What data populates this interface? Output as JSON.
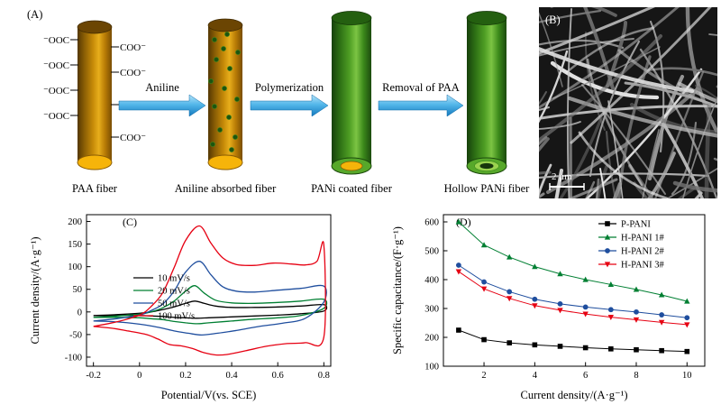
{
  "panel_a": {
    "label": "(A)",
    "arrow_labels": [
      "Aniline",
      "Polymerization",
      "Removal of PAA"
    ],
    "fiber_labels": [
      "PAA fiber",
      "Aniline absorbed fiber",
      "PANi coated fiber",
      "Hollow PANi fiber"
    ],
    "left_groups": [
      "⁻OOC",
      "⁻OOC",
      "⁻OOC",
      "⁻OOC"
    ],
    "right_groups": [
      "COO⁻",
      "COO⁻",
      "COO⁻",
      "COO⁻"
    ],
    "colors": {
      "paa_body": "#cf8f08",
      "pani_body": "#4f9e24",
      "arrow": "#53b7ea",
      "core_yellow": "#f6b40a",
      "aniline_dot": "#1d5410"
    }
  },
  "panel_b": {
    "label": "(B)",
    "scale_bar_label": "2 μm"
  },
  "chart_data": [
    {
      "panel_label": "(C)",
      "type": "line",
      "title": "",
      "xlabel": "Potential/V(vs. SCE)",
      "ylabel": "Current density/(A·g⁻¹)",
      "xlim": [
        -0.23,
        0.83
      ],
      "ylim": [
        -120,
        215
      ],
      "xticks": [
        -0.2,
        0,
        0.2,
        0.4,
        0.6,
        0.8
      ],
      "xtick_labels": [
        "-0.2",
        "0",
        "0.2",
        "0.4",
        "0.6",
        "0.8"
      ],
      "yticks": [
        -100,
        -50,
        0,
        50,
        100,
        150,
        200
      ],
      "ytick_labels": [
        "-100",
        "-50",
        "0",
        "50",
        "100",
        "150",
        "200"
      ],
      "grid": false,
      "legend_position": "center-left",
      "series": [
        {
          "name": "10 mV/s",
          "color": "#000000",
          "points": [
            [
              -0.2,
              -8
            ],
            [
              -0.1,
              -6
            ],
            [
              0,
              -3
            ],
            [
              0.05,
              0
            ],
            [
              0.1,
              5
            ],
            [
              0.15,
              11
            ],
            [
              0.2,
              19
            ],
            [
              0.24,
              24
            ],
            [
              0.28,
              19
            ],
            [
              0.33,
              13
            ],
            [
              0.4,
              10
            ],
            [
              0.5,
              10
            ],
            [
              0.6,
              11
            ],
            [
              0.7,
              13
            ],
            [
              0.8,
              16
            ],
            [
              0.8,
              2
            ],
            [
              0.7,
              -4
            ],
            [
              0.6,
              -7
            ],
            [
              0.5,
              -9
            ],
            [
              0.4,
              -11
            ],
            [
              0.3,
              -13
            ],
            [
              0.25,
              -14
            ],
            [
              0.2,
              -13
            ],
            [
              0.15,
              -12
            ],
            [
              0.1,
              -10
            ],
            [
              0.05,
              -9
            ],
            [
              0,
              -8
            ],
            [
              -0.1,
              -8
            ],
            [
              -0.2,
              -8
            ]
          ]
        },
        {
          "name": "20 mV/s",
          "color": "#007f32",
          "points": [
            [
              -0.2,
              -12
            ],
            [
              -0.1,
              -9
            ],
            [
              0,
              -5
            ],
            [
              0.05,
              0
            ],
            [
              0.1,
              9
            ],
            [
              0.15,
              24
            ],
            [
              0.2,
              46
            ],
            [
              0.24,
              58
            ],
            [
              0.28,
              42
            ],
            [
              0.33,
              26
            ],
            [
              0.4,
              20
            ],
            [
              0.5,
              19
            ],
            [
              0.6,
              21
            ],
            [
              0.7,
              24
            ],
            [
              0.8,
              28
            ],
            [
              0.8,
              8
            ],
            [
              0.7,
              -8
            ],
            [
              0.6,
              -13
            ],
            [
              0.5,
              -16
            ],
            [
              0.4,
              -20
            ],
            [
              0.3,
              -24
            ],
            [
              0.25,
              -26
            ],
            [
              0.2,
              -24
            ],
            [
              0.15,
              -21
            ],
            [
              0.1,
              -17
            ],
            [
              0.05,
              -15
            ],
            [
              0,
              -13
            ],
            [
              -0.1,
              -12
            ],
            [
              -0.2,
              -12
            ]
          ]
        },
        {
          "name": "50 mV/s",
          "color": "#1f4e9e",
          "points": [
            [
              -0.2,
              -20
            ],
            [
              -0.1,
              -15
            ],
            [
              0,
              -7
            ],
            [
              0.05,
              3
            ],
            [
              0.1,
              17
            ],
            [
              0.15,
              46
            ],
            [
              0.2,
              88
            ],
            [
              0.26,
              112
            ],
            [
              0.31,
              82
            ],
            [
              0.36,
              56
            ],
            [
              0.42,
              46
            ],
            [
              0.5,
              44
            ],
            [
              0.6,
              48
            ],
            [
              0.7,
              52
            ],
            [
              0.8,
              57
            ],
            [
              0.8,
              22
            ],
            [
              0.72,
              -14
            ],
            [
              0.62,
              -25
            ],
            [
              0.52,
              -32
            ],
            [
              0.42,
              -41
            ],
            [
              0.34,
              -47
            ],
            [
              0.27,
              -51
            ],
            [
              0.21,
              -47
            ],
            [
              0.15,
              -42
            ],
            [
              0.1,
              -36
            ],
            [
              0.05,
              -31
            ],
            [
              0,
              -27
            ],
            [
              -0.1,
              -22
            ],
            [
              -0.2,
              -20
            ]
          ]
        },
        {
          "name": "100 mV/s",
          "color": "#e60012",
          "points": [
            [
              -0.2,
              -32
            ],
            [
              -0.1,
              -22
            ],
            [
              0,
              -7
            ],
            [
              0.05,
              12
            ],
            [
              0.1,
              42
            ],
            [
              0.15,
              98
            ],
            [
              0.2,
              158
            ],
            [
              0.26,
              190
            ],
            [
              0.31,
              152
            ],
            [
              0.36,
              120
            ],
            [
              0.42,
              105
            ],
            [
              0.5,
              103
            ],
            [
              0.58,
              108
            ],
            [
              0.66,
              106
            ],
            [
              0.72,
              104
            ],
            [
              0.77,
              112
            ],
            [
              0.8,
              148
            ],
            [
              0.8,
              -56
            ],
            [
              0.72,
              -68
            ],
            [
              0.64,
              -70
            ],
            [
              0.55,
              -76
            ],
            [
              0.46,
              -86
            ],
            [
              0.38,
              -94
            ],
            [
              0.33,
              -95
            ],
            [
              0.28,
              -90
            ],
            [
              0.23,
              -81
            ],
            [
              0.18,
              -75
            ],
            [
              0.13,
              -72
            ],
            [
              0.08,
              -60
            ],
            [
              0.03,
              -50
            ],
            [
              -0.05,
              -42
            ],
            [
              -0.12,
              -36
            ],
            [
              -0.2,
              -32
            ]
          ]
        }
      ]
    },
    {
      "panel_label": "(D)",
      "type": "scatter",
      "title": "",
      "xlabel": "Current density/(A·g⁻¹)",
      "ylabel": "Specific capacitance/(F·g⁻¹)",
      "xlim": [
        0.4,
        10.7
      ],
      "ylim": [
        100,
        625
      ],
      "xticks": [
        2,
        4,
        6,
        8,
        10
      ],
      "xtick_labels": [
        "2",
        "4",
        "6",
        "8",
        "10"
      ],
      "yticks": [
        100,
        200,
        300,
        400,
        500,
        600
      ],
      "ytick_labels": [
        "100",
        "200",
        "300",
        "400",
        "500",
        "600"
      ],
      "grid": false,
      "legend_position": "top-right",
      "x": [
        1,
        2,
        3,
        4,
        5,
        6,
        7,
        8,
        9,
        10
      ],
      "series": [
        {
          "name": "P-PANI",
          "color": "#000000",
          "marker": "square",
          "values": [
            225,
            192,
            181,
            174,
            169,
            164,
            160,
            157,
            154,
            151
          ]
        },
        {
          "name": "H-PANI 1#",
          "color": "#007f32",
          "marker": "triangle-up",
          "values": [
            600,
            520,
            478,
            445,
            420,
            400,
            383,
            366,
            347,
            325
          ]
        },
        {
          "name": "H-PANI 2#",
          "color": "#1f4e9e",
          "marker": "circle",
          "values": [
            450,
            392,
            358,
            332,
            316,
            305,
            296,
            288,
            278,
            268
          ]
        },
        {
          "name": "H-PANI 3#",
          "color": "#e60012",
          "marker": "triangle-down",
          "values": [
            428,
            368,
            335,
            310,
            294,
            281,
            270,
            261,
            252,
            244
          ]
        }
      ]
    }
  ]
}
